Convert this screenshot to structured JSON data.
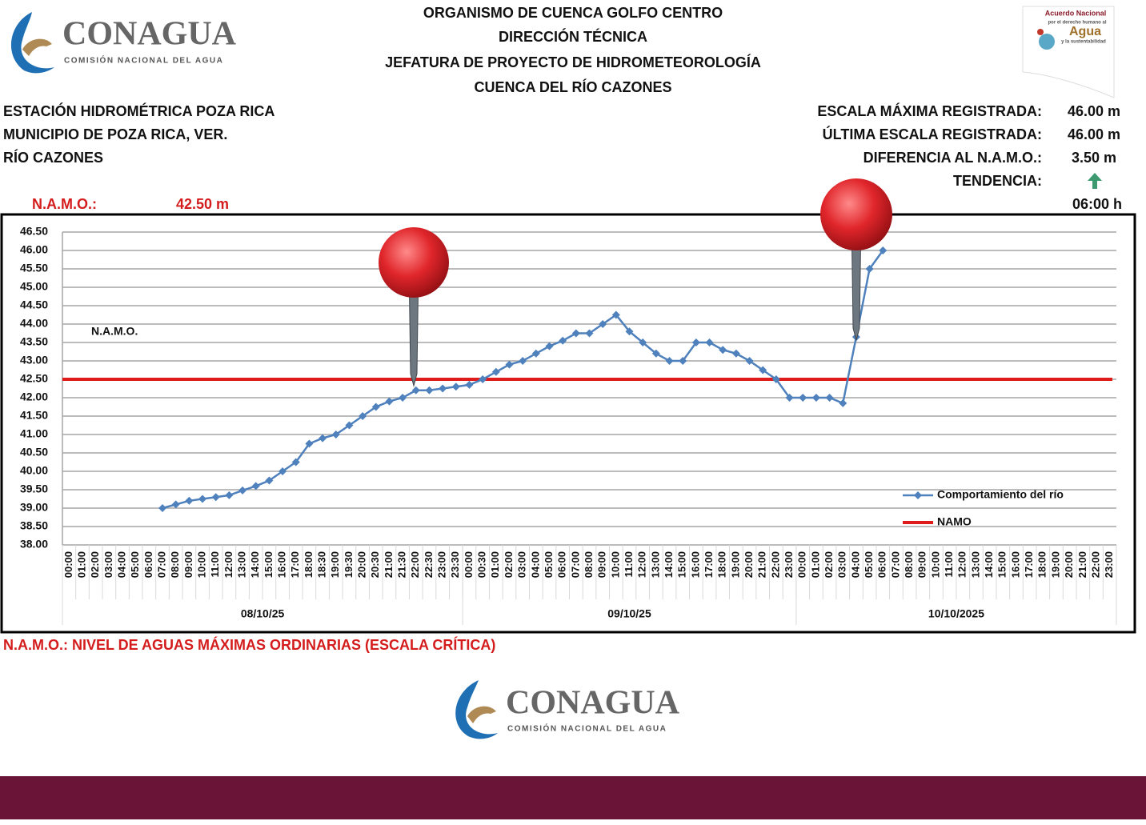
{
  "header": {
    "logo_left": {
      "name": "CONAGUA",
      "subtitle": "COMISIÓN NACIONAL DEL AGUA"
    },
    "titles": [
      "ORGANISMO DE CUENCA GOLFO CENTRO",
      "DIRECCIÓN TÉCNICA",
      "JEFATURA DE PROYECTO DE HIDROMETEOROLOGÍA",
      "CUENCA DEL RÍO CAZONES"
    ],
    "logo_right": {
      "line1": "Acuerdo Nacional",
      "line2": "por el derecho humano al",
      "line3": "Agua",
      "line4": "y la sustentabilidad"
    }
  },
  "station": [
    "ESTACIÓN HIDROMÉTRICA POZA RICA",
    "MUNICIPIO DE POZA RICA, VER.",
    "RÍO CAZONES"
  ],
  "stats": [
    {
      "label": "ESCALA MÁXIMA REGISTRADA:",
      "value": "46.00 m"
    },
    {
      "label": "ÚLTIMA ESCALA REGISTRADA:",
      "value": "46.00 m"
    },
    {
      "label": "DIFERENCIA AL N.A.M.O.:",
      "value": "3.50 m"
    },
    {
      "label": "TENDENCIA:"
    }
  ],
  "namo_info": {
    "label": "N.A.M.O.:",
    "value": "42.50 m"
  },
  "time": "06:00 h",
  "chart_data": {
    "type": "line",
    "groups": [
      {
        "label": "08/10/25",
        "categories": [
          "00:00",
          "01:00",
          "02:00",
          "03:00",
          "04:00",
          "05:00",
          "06:00",
          "07:00",
          "08:00",
          "09:00",
          "10:00",
          "11:00",
          "12:00",
          "13:00",
          "14:00",
          "15:00",
          "16:00",
          "17:00",
          "18:00",
          "18:30",
          "19:00",
          "19:30",
          "20:00",
          "20:30",
          "21:00",
          "21:30",
          "22:00",
          "22:30",
          "23:00",
          "23:30"
        ]
      },
      {
        "label": "09/10/25",
        "categories": [
          "00:00",
          "00:30",
          "01:00",
          "02:00",
          "03:00",
          "04:00",
          "05:00",
          "06:00",
          "07:00",
          "08:00",
          "09:00",
          "10:00",
          "11:00",
          "12:00",
          "13:00",
          "14:00",
          "15:00",
          "16:00",
          "17:00",
          "18:00",
          "19:00",
          "20:00",
          "21:00",
          "22:00",
          "23:00"
        ]
      },
      {
        "label": "10/10/2025",
        "categories": [
          "00:00",
          "01:00",
          "02:00",
          "03:00",
          "04:00",
          "05:00",
          "06:00",
          "07:00",
          "08:00",
          "09:00",
          "10:00",
          "11:00",
          "12:00",
          "13:00",
          "14:00",
          "15:00",
          "16:00",
          "17:00",
          "18:00",
          "19:00",
          "20:00",
          "21:00",
          "22:00",
          "23:00"
        ]
      }
    ],
    "series": [
      {
        "name": "Comportamiento del río",
        "color": "#4f81bd",
        "values": [
          null,
          null,
          null,
          null,
          null,
          null,
          null,
          39.0,
          39.1,
          39.2,
          39.25,
          39.3,
          39.35,
          39.48,
          39.6,
          39.75,
          40.0,
          40.25,
          40.75,
          40.9,
          41.0,
          41.25,
          41.5,
          41.75,
          41.9,
          42.0,
          42.2,
          42.2,
          42.25,
          42.3,
          42.35,
          42.5,
          42.7,
          42.9,
          43.0,
          43.2,
          43.4,
          43.55,
          43.75,
          43.75,
          44.0,
          44.25,
          43.8,
          43.5,
          43.2,
          43.0,
          43.0,
          43.5,
          43.5,
          43.3,
          43.2,
          43.0,
          42.75,
          42.5,
          42.0,
          42.0,
          42.0,
          42.0,
          41.85,
          43.65,
          45.5,
          46.0,
          null,
          null,
          null,
          null,
          null,
          null,
          null,
          null,
          null,
          null,
          null,
          null,
          null,
          null,
          null,
          null,
          null
        ]
      }
    ],
    "reference_lines": [
      {
        "name": "NAMO",
        "value": 42.5,
        "color": "#e01b1b"
      }
    ],
    "annotation": "N.A.M.O.",
    "ylim": [
      38,
      46.5
    ],
    "yticks": [
      {
        "value": 38,
        "label": "38.00"
      },
      {
        "value": 38.5,
        "label": "38.50"
      },
      {
        "value": 39,
        "label": "39.00"
      },
      {
        "value": 39.5,
        "label": "39.50"
      },
      {
        "value": 40,
        "label": "40.00"
      },
      {
        "value": 40.5,
        "label": "40.50"
      },
      {
        "value": 41,
        "label": "41.00"
      },
      {
        "value": 41.5,
        "label": "41.50"
      },
      {
        "value": 42,
        "label": "42.00"
      },
      {
        "value": 42.5,
        "label": "42.50"
      },
      {
        "value": 43,
        "label": "43.00"
      },
      {
        "value": 43.5,
        "label": "43.50"
      },
      {
        "value": 44,
        "label": "44.00"
      },
      {
        "value": 44.5,
        "label": "44.50"
      },
      {
        "value": 45,
        "label": "45.00"
      },
      {
        "value": 45.5,
        "label": "45.50"
      },
      {
        "value": 46,
        "label": "46.00"
      },
      {
        "value": 46.5,
        "label": "46.50"
      }
    ],
    "grid": true,
    "legend": "lower right"
  },
  "footnote": "N.A.M.O.: NIVEL DE AGUAS MÁXIMAS ORDINARIAS (ESCALA CRÍTICA)",
  "footer_logo": {
    "name": "CONAGUA",
    "subtitle": "COMISIÓN NACIONAL DEL AGUA"
  }
}
